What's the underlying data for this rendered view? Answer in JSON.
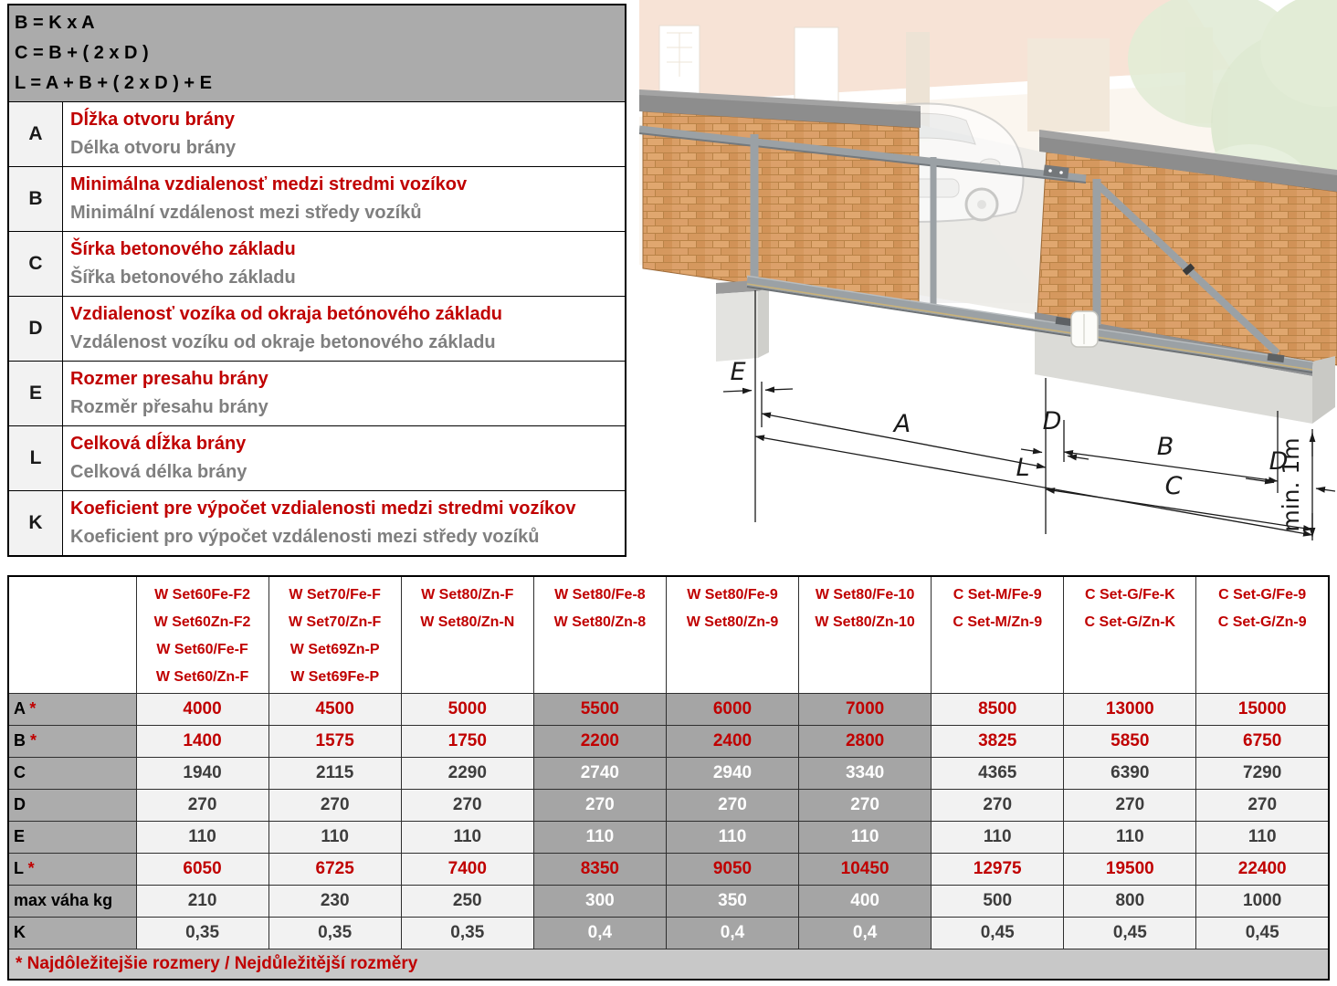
{
  "formulas": [
    "B = K x A",
    "C = B + ( 2 x D )",
    "L = A + B + ( 2 x D ) + E"
  ],
  "legend": {
    "rows": [
      {
        "letter": "A",
        "sk": "Dĺžka otvoru brány",
        "cz": "Délka otvoru brány"
      },
      {
        "letter": "B",
        "sk": "Minimálna vzdialenosť medzi stredmi vozíkov",
        "cz": "Minimální vzdálenost mezi středy vozíků"
      },
      {
        "letter": "C",
        "sk": "Šírka betonového základu",
        "cz": "Šířka betonového základu"
      },
      {
        "letter": "D",
        "sk": "Vzdialenosť vozíka od okraja betónového základu",
        "cz": "Vzdálenost vozíku od okraje betonového základu"
      },
      {
        "letter": "E",
        "sk": "Rozmer presahu brány",
        "cz": "Rozměr přesahu brány"
      },
      {
        "letter": "L",
        "sk": "Celková dĺžka brány",
        "cz": "Celková délka brány"
      },
      {
        "letter": "K",
        "sk": "Koeficient pre výpočet vzdialenosti medzi stredmi vozíkov",
        "cz": "Koeficient pro výpočet vzdálenosti mezi středy vozíků"
      }
    ]
  },
  "diagram": {
    "e": "E",
    "a": "A",
    "d_left": "D",
    "b": "B",
    "d_right": "D",
    "c": "C",
    "l": "L",
    "min_height": "min. 1m"
  },
  "table": {
    "columns": [
      {
        "lines": [
          "W Set60Fe-F2",
          "W Set60Zn-F2",
          "W Set60/Fe-F",
          "W Set60/Zn-F"
        ],
        "highlight": false
      },
      {
        "lines": [
          "W Set70/Fe-F",
          "W Set70/Zn-F",
          "W Set69Zn-P",
          "W Set69Fe-P"
        ],
        "highlight": false
      },
      {
        "lines": [
          "W Set80/Zn-F",
          "W Set80/Zn-N"
        ],
        "highlight": false
      },
      {
        "lines": [
          "W Set80/Fe-8",
          "W Set80/Zn-8"
        ],
        "highlight": true
      },
      {
        "lines": [
          "W Set80/Fe-9",
          "W Set80/Zn-9"
        ],
        "highlight": true
      },
      {
        "lines": [
          "W Set80/Fe-10",
          "W Set80/Zn-10"
        ],
        "highlight": true
      },
      {
        "lines": [
          "C Set-M/Fe-9",
          "C Set-M/Zn-9"
        ],
        "highlight": false
      },
      {
        "lines": [
          "C Set-G/Fe-K",
          "C Set-G/Zn-K"
        ],
        "highlight": false
      },
      {
        "lines": [
          "C Set-G/Fe-9",
          "C Set-G/Zn-9"
        ],
        "highlight": false
      }
    ],
    "rows": [
      {
        "label": "A",
        "star": true,
        "red": true,
        "values": [
          "4000",
          "4500",
          "5000",
          "5500",
          "6000",
          "7000",
          "8500",
          "13000",
          "15000"
        ]
      },
      {
        "label": "B",
        "star": true,
        "red": true,
        "values": [
          "1400",
          "1575",
          "1750",
          "2200",
          "2400",
          "2800",
          "3825",
          "5850",
          "6750"
        ]
      },
      {
        "label": "C",
        "star": false,
        "red": false,
        "values": [
          "1940",
          "2115",
          "2290",
          "2740",
          "2940",
          "3340",
          "4365",
          "6390",
          "7290"
        ]
      },
      {
        "label": "D",
        "star": false,
        "red": false,
        "values": [
          "270",
          "270",
          "270",
          "270",
          "270",
          "270",
          "270",
          "270",
          "270"
        ]
      },
      {
        "label": "E",
        "star": false,
        "red": false,
        "values": [
          "110",
          "110",
          "110",
          "110",
          "110",
          "110",
          "110",
          "110",
          "110"
        ]
      },
      {
        "label": "L",
        "star": true,
        "red": true,
        "values": [
          "6050",
          "6725",
          "7400",
          "8350",
          "9050",
          "10450",
          "12975",
          "19500",
          "22400"
        ]
      },
      {
        "label": "max váha kg",
        "star": false,
        "red": false,
        "values": [
          "210",
          "230",
          "250",
          "300",
          "350",
          "400",
          "500",
          "800",
          "1000"
        ]
      },
      {
        "label": "K",
        "star": false,
        "red": false,
        "values": [
          "0,35",
          "0,35",
          "0,35",
          "0,4",
          "0,4",
          "0,4",
          "0,45",
          "0,45",
          "0,45"
        ]
      }
    ],
    "footnote": "* Najdôležitejšie rozmery / Nejdůležitější rozměry"
  },
  "colors": {
    "accent_red": "#c00000",
    "secondary_gray_text": "#7f7f7f",
    "formula_bg": "#ababab",
    "row_header_bg": "#acacac",
    "highlight_col_bg": "#a5a5a5",
    "light_cell_bg": "#f2f2f2",
    "footnote_bg": "#c8c8c8"
  }
}
